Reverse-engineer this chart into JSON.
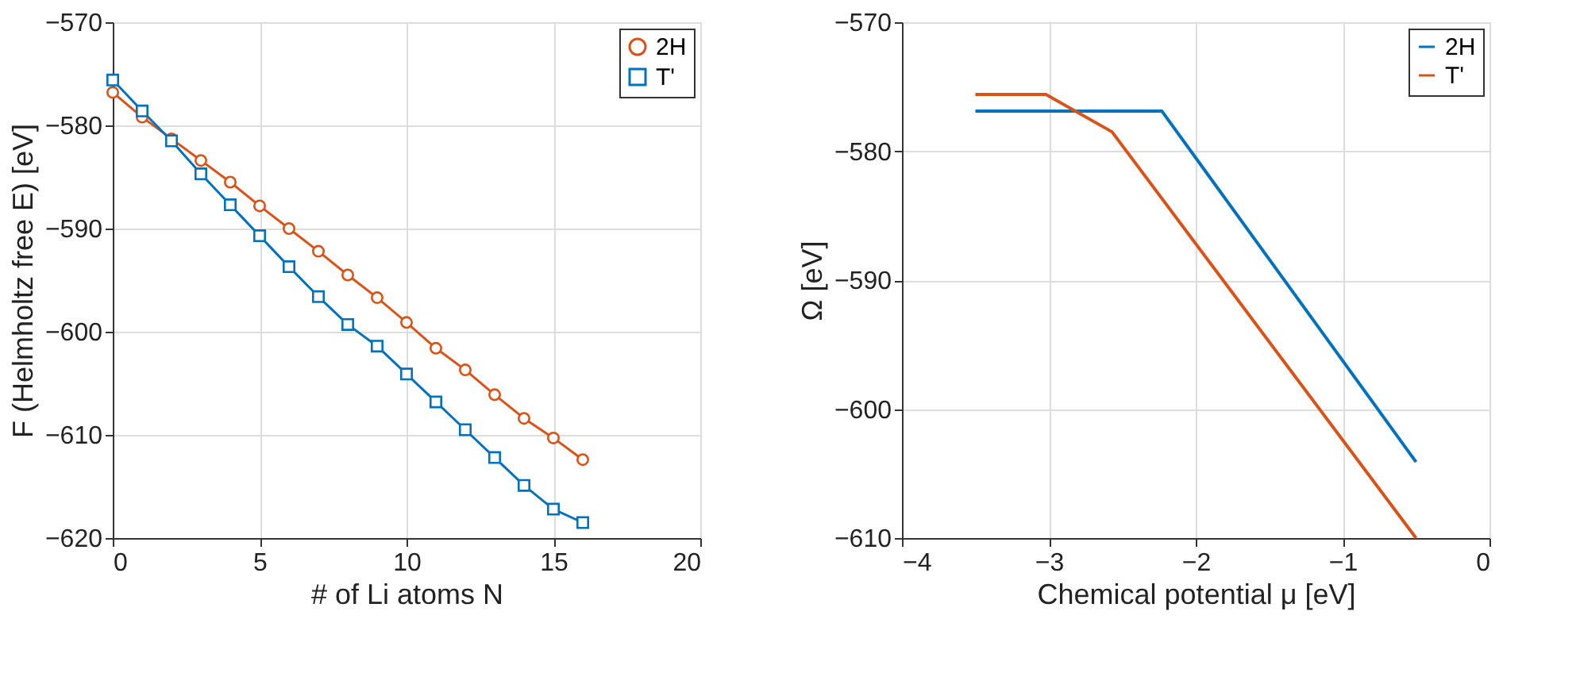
{
  "chart_data": [
    {
      "type": "line",
      "xlabel": "# of Li atoms N",
      "ylabel": "F (Helmholtz free E) [eV]",
      "x": [
        0,
        1,
        2,
        3,
        4,
        5,
        6,
        7,
        8,
        9,
        10,
        11,
        12,
        13,
        14,
        15,
        16
      ],
      "xlim": [
        0,
        20
      ],
      "xticks": [
        0,
        5,
        10,
        15,
        20
      ],
      "ylim": [
        -620,
        -570
      ],
      "yticks": [
        -620,
        -610,
        -600,
        -590,
        -580,
        -570
      ],
      "grid": true,
      "legend": "top right",
      "series": [
        {
          "name": "2H",
          "color": "#d95319",
          "marker": "circle",
          "values": [
            -576.8,
            -579.2,
            -581.3,
            -583.4,
            -585.5,
            -587.8,
            -590.0,
            -592.2,
            -594.5,
            -596.7,
            -599.1,
            -601.6,
            -603.7,
            -606.1,
            -608.4,
            -610.3,
            -612.4
          ]
        },
        {
          "name": "T'",
          "color": "#0072bd",
          "marker": "square",
          "values": [
            -575.6,
            -578.6,
            -581.5,
            -584.7,
            -587.7,
            -590.7,
            -593.7,
            -596.6,
            -599.3,
            -601.4,
            -604.1,
            -606.8,
            -609.5,
            -612.2,
            -614.9,
            -617.2,
            -618.5
          ]
        }
      ]
    },
    {
      "type": "line",
      "xlabel": "Chemical potential μ [eV]",
      "ylabel": "Ω [eV]",
      "xlim": [
        -4,
        0
      ],
      "xticks": [
        -4,
        -3,
        -2,
        -1,
        0
      ],
      "ylim": [
        -610,
        -570
      ],
      "yticks": [
        -610,
        -600,
        -590,
        -580,
        -570
      ],
      "grid": true,
      "legend": "top right",
      "series": [
        {
          "name": "2H",
          "color": "#0072bd",
          "x": [
            -3.5,
            -2.23,
            -0.5
          ],
          "values": [
            -576.9,
            -576.9,
            -604.1
          ]
        },
        {
          "name": "T'",
          "color": "#d95319",
          "x": [
            -3.5,
            -3.02,
            -2.57,
            -0.5
          ],
          "values": [
            -575.6,
            -575.6,
            -578.5,
            -610
          ]
        }
      ]
    }
  ]
}
